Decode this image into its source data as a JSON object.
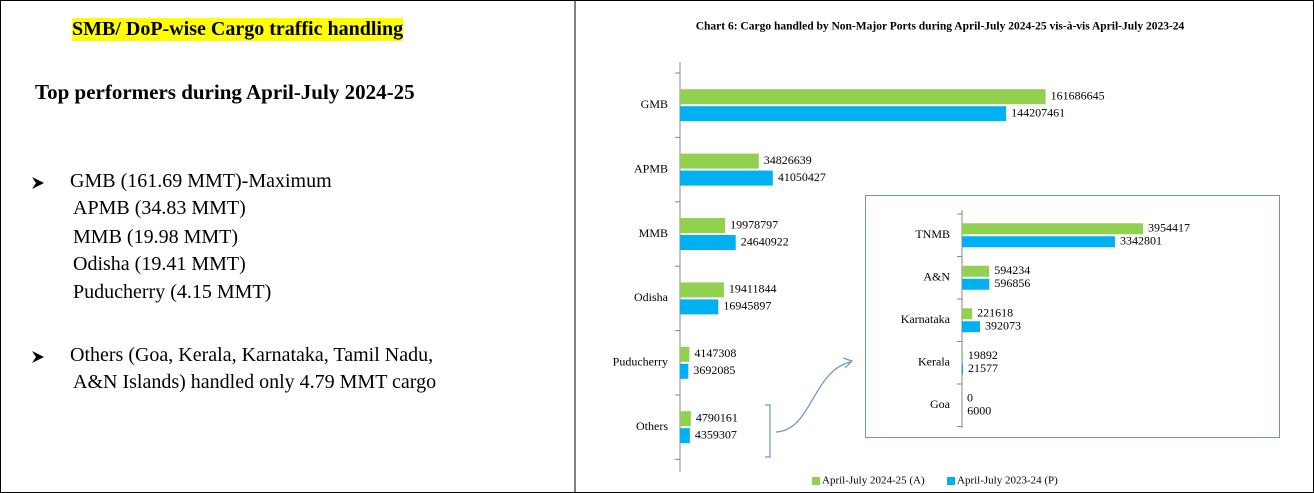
{
  "document": {
    "heading": "SMB/ DoP-wise Cargo traffic handling",
    "subheading": "Top performers during April-July 2024-25",
    "bullets": [
      {
        "lines": [
          "GMB (161.69 MMT)-Maximum",
          "APMB (34.83 MMT)",
          "MMB (19.98 MMT)",
          "Odisha (19.41 MMT)",
          "Puducherry (4.15 MMT)"
        ]
      },
      {
        "lines": [
          "Others (Goa, Kerala, Karnataka, Tamil Nadu,",
          "A&N Islands) handled only 4.79 MMT cargo"
        ]
      }
    ]
  },
  "chart_data": [
    {
      "type": "hbar",
      "title": "Chart 6: Cargo handled by Non-Major Ports during April-July 2024-25 vis-à-vis April-July 2023-24",
      "categories": [
        "GMB",
        "APMB",
        "MMB",
        "Odisha",
        "Puducherry",
        "Others"
      ],
      "series": [
        {
          "name": "April-July 2024-25 (A)",
          "color": "#92d050",
          "values": [
            161686645,
            34826639,
            19978797,
            19411844,
            4147308,
            4790161
          ]
        },
        {
          "name": "April-July 2023-24 (P)",
          "color": "#00b0f0",
          "values": [
            144207461,
            41050427,
            24640922,
            16945897,
            3692085,
            4359307
          ]
        }
      ],
      "xlim": [
        0,
        180000000
      ],
      "legend": "bottom"
    },
    {
      "type": "hbar",
      "categories": [
        "TNMB",
        "A&N",
        "Karnataka",
        "Kerala",
        "Goa"
      ],
      "series": [
        {
          "color": "#92d050",
          "values": [
            3954417,
            594234,
            221618,
            19892,
            0
          ]
        },
        {
          "color": "#00b0f0",
          "values": [
            3342801,
            596856,
            392073,
            21577,
            6000
          ]
        }
      ],
      "xlim": [
        0,
        4500000
      ]
    }
  ]
}
